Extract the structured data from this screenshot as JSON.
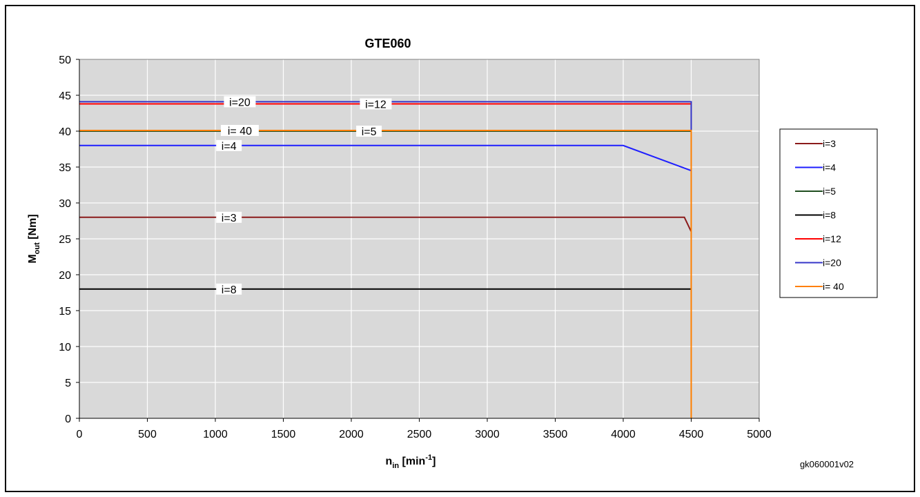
{
  "chart_data": {
    "type": "line",
    "title": "GTE060",
    "xlabel": {
      "main": "n",
      "sub": "in",
      "unit": " [min",
      "sup": "-1",
      "close": "]"
    },
    "ylabel": {
      "main": "M",
      "sub": "out",
      "unit": " [Nm]"
    },
    "xlim": [
      0,
      5000
    ],
    "ylim": [
      0,
      50
    ],
    "xticks": [
      0,
      500,
      1000,
      1500,
      2000,
      2500,
      3000,
      3500,
      4000,
      4500,
      5000
    ],
    "yticks": [
      0,
      5,
      10,
      15,
      20,
      25,
      30,
      35,
      40,
      45,
      50
    ],
    "grid": true,
    "legend_position": "right",
    "series": [
      {
        "name": "i=3",
        "color": "#8B1A1A",
        "points": [
          [
            0,
            28
          ],
          [
            4450,
            28
          ],
          [
            4500,
            26
          ],
          [
            4500,
            0
          ]
        ]
      },
      {
        "name": "i=4",
        "color": "#1E1EFF",
        "points": [
          [
            0,
            38
          ],
          [
            4000,
            38
          ],
          [
            4500,
            34.5
          ],
          [
            4500,
            0
          ]
        ]
      },
      {
        "name": "i=5",
        "color": "#1F4E1F",
        "points": [
          [
            0,
            40
          ],
          [
            4500,
            40
          ],
          [
            4500,
            0
          ]
        ]
      },
      {
        "name": "i=8",
        "color": "#000000",
        "points": [
          [
            0,
            18
          ],
          [
            4500,
            18
          ],
          [
            4500,
            0
          ]
        ]
      },
      {
        "name": "i=12",
        "color": "#FF0000",
        "points": [
          [
            0,
            43.8
          ],
          [
            4500,
            43.8
          ],
          [
            4500,
            0
          ]
        ]
      },
      {
        "name": "i=20",
        "color": "#3535C8",
        "points": [
          [
            0,
            44.1
          ],
          [
            4500,
            44.1
          ],
          [
            4500,
            0
          ]
        ]
      },
      {
        "name": "i= 40",
        "color": "#FF7F00",
        "points": [
          [
            0,
            40.1
          ],
          [
            4500,
            40.1
          ],
          [
            4500,
            0
          ]
        ]
      }
    ],
    "annotations": [
      {
        "text": "i=20",
        "x": 1180,
        "y": 44.1
      },
      {
        "text": "i=12",
        "x": 2180,
        "y": 43.8
      },
      {
        "text": "i= 40",
        "x": 1180,
        "y": 40.1
      },
      {
        "text": "i=5",
        "x": 2130,
        "y": 40.0
      },
      {
        "text": "i=4",
        "x": 1100,
        "y": 38
      },
      {
        "text": "i=3",
        "x": 1100,
        "y": 28
      },
      {
        "text": "i=8",
        "x": 1100,
        "y": 18
      }
    ],
    "source_code": "gk060001v02"
  }
}
